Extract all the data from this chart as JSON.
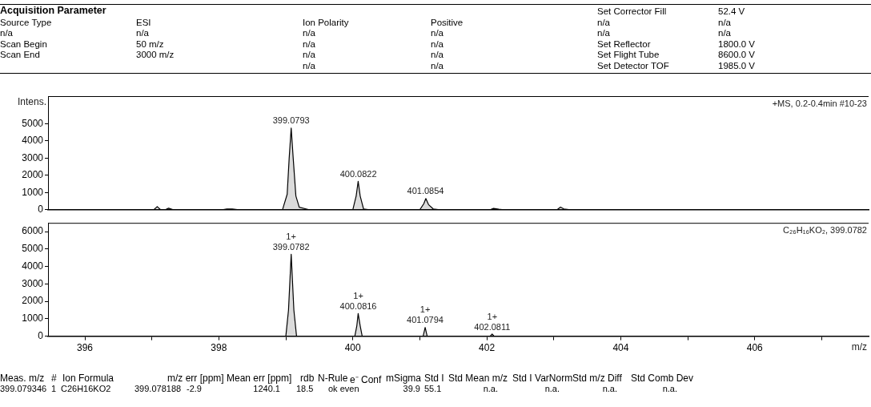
{
  "chart_data": [
    {
      "type": "other",
      "title": "Acquisition Parameter",
      "annotations": [
        "Set Corrector Fill",
        "52.4 V",
        "Source Type",
        "ESI",
        "Ion Polarity",
        "Positive",
        "n/a",
        "n/a",
        "n/a",
        "n/a",
        "n/a",
        "n/a",
        "n/a",
        "n/a",
        "Scan Begin",
        "50 m/z",
        "n/a",
        "n/a",
        "Set Reflector",
        "1800.0 V",
        "Scan End",
        "3000 m/z",
        "n/a",
        "n/a",
        "Set Flight Tube",
        "8600.0 V",
        "n/a",
        "n/a",
        "Set Detector TOF",
        "1985.0 V"
      ]
    },
    {
      "type": "area",
      "title": "+MS, 0.2-0.4min #10-23",
      "ylabel": "Intens.",
      "xlim": [
        395.45,
        407.7
      ],
      "ylim": [
        0,
        6600
      ],
      "yticks": [
        0,
        1000,
        2000,
        3000,
        4000,
        5000
      ],
      "tick_labels": "y",
      "grid": false,
      "legend": false,
      "series": [
        {
          "color": "#000000",
          "x": [
            395.45,
            397.03,
            397.08,
            397.13,
            397.2,
            397.25,
            397.32,
            398.05,
            398.12,
            398.2,
            398.3,
            398.95,
            399.02,
            399.05,
            399.08,
            399.11,
            399.15,
            399.2,
            399.3,
            399.35,
            400.0,
            400.05,
            400.08,
            400.11,
            400.16,
            400.25,
            401.0,
            401.06,
            401.09,
            401.13,
            401.2,
            401.3,
            402.05,
            402.1,
            402.18,
            402.25,
            403.05,
            403.1,
            403.15,
            403.25,
            407.7
          ],
          "values": [
            0,
            0,
            180,
            0,
            0,
            90,
            0,
            0,
            50,
            40,
            0,
            0,
            900,
            3000,
            4750,
            3000,
            800,
            150,
            50,
            0,
            0,
            800,
            1650,
            800,
            50,
            0,
            0,
            350,
            650,
            300,
            50,
            0,
            0,
            80,
            30,
            0,
            0,
            150,
            50,
            0,
            0
          ]
        }
      ],
      "annotations": [
        {
          "text": "399.0793",
          "x": 399.0793,
          "y": 4750
        },
        {
          "text": "400.0822",
          "x": 400.0822,
          "y": 1650
        },
        {
          "text": "401.0854",
          "x": 401.0854,
          "y": 650
        }
      ]
    },
    {
      "type": "area",
      "title": "C₂₆H₁₆KO₂, 399.0782",
      "xlabel": "m/z",
      "xlim": [
        395.45,
        407.7
      ],
      "ylim": [
        0,
        6500
      ],
      "xticks": [
        396,
        {
          "value": 397,
          "label": null
        },
        398,
        {
          "value": 399,
          "label": null
        },
        400,
        {
          "value": 401,
          "label": null
        },
        402,
        {
          "value": 403,
          "label": null
        },
        404,
        {
          "value": 405,
          "label": null
        },
        406,
        {
          "value": 407,
          "label": null
        }
      ],
      "yticks": [
        0,
        1000,
        2000,
        3000,
        4000,
        5000,
        6000
      ],
      "grid": false,
      "legend": false,
      "series": [
        {
          "color": "#000000",
          "x": [
            395.45,
            399.0,
            399.04,
            399.08,
            399.12,
            399.16,
            400.03,
            400.06,
            400.08,
            400.11,
            400.14,
            401.05,
            401.08,
            401.11,
            402.05,
            402.08,
            402.11,
            403.3
          ],
          "values": [
            0,
            0,
            1500,
            4700,
            1500,
            0,
            0,
            600,
            1300,
            600,
            0,
            0,
            500,
            0,
            0,
            120,
            0,
            0
          ]
        }
      ],
      "annotations": [
        {
          "text": "1+\n399.0782",
          "x": 399.0782,
          "y": 4700
        },
        {
          "text": "1+\n400.0816",
          "x": 400.0816,
          "y": 1300
        },
        {
          "text": "1+\n401.0794",
          "x": 401.0794,
          "y": 500
        },
        {
          "text": "1+\n402.0811",
          "x": 402.0811,
          "y": 120
        }
      ]
    },
    {
      "type": "other",
      "annotations": [
        "Meas. m/z",
        "#",
        "Ion Formula",
        "m/z err [ppm]",
        "Mean err [ppm]",
        "rdb",
        "N-Rule",
        "e⁻ Conf",
        "mSigma",
        "Std I",
        "Std Mean m/z",
        "Std I VarNorm",
        "Std m/z Diff",
        "Std Comb Dev",
        "399.079346",
        "1",
        "C26H16KO2",
        "399.078188",
        "-2.9",
        "1240.1",
        "18.5",
        "ok even",
        "39.9",
        "55.1",
        "n.a.",
        "n.a.",
        "n.a.",
        "n.a."
      ]
    }
  ]
}
